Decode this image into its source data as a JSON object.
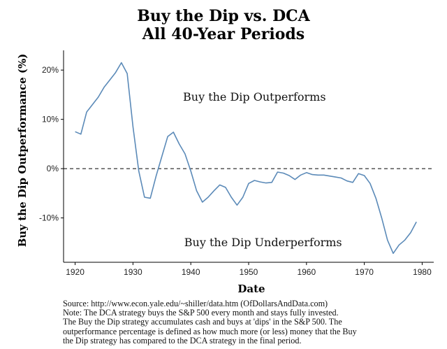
{
  "title_line1": "Buy the Dip vs. DCA",
  "title_line2": "All 40-Year Periods",
  "chart_data": {
    "type": "line",
    "title": "Buy the Dip vs. DCA All 40-Year Periods",
    "xlabel": "Date",
    "ylabel": "Buy the Dip Outperformance (%)",
    "xlim": [
      1918,
      1982
    ],
    "ylim": [
      -19,
      24
    ],
    "x_ticks": [
      1920,
      1930,
      1940,
      1950,
      1960,
      1970,
      1980
    ],
    "x_tick_labels": [
      "1920",
      "1930",
      "1940",
      "1950",
      "1960",
      "1970",
      "1980"
    ],
    "y_ticks": [
      -10,
      0,
      10,
      20
    ],
    "y_tick_labels": [
      "-10%",
      "0%",
      "10%",
      "20%"
    ],
    "reference_line": {
      "y": 0,
      "style": "dashed"
    },
    "annotations": [
      {
        "text": "Buy the Dip Outperforms",
        "x": 1951,
        "y": 14.5
      },
      {
        "text": "Buy the Dip Underperforms",
        "x": 1952.5,
        "y": -15
      }
    ],
    "series": [
      {
        "name": "Buy the Dip Outperformance",
        "color": "#5b8ab8",
        "x": [
          1920,
          1921,
          1922,
          1923,
          1924,
          1925,
          1926,
          1927,
          1928,
          1929,
          1930,
          1931,
          1932,
          1933,
          1934,
          1935,
          1936,
          1937,
          1938,
          1939,
          1940,
          1941,
          1942,
          1943,
          1944,
          1945,
          1946,
          1947,
          1948,
          1949,
          1950,
          1951,
          1952,
          1953,
          1954,
          1955,
          1956,
          1957,
          1958,
          1959,
          1960,
          1961,
          1962,
          1963,
          1964,
          1965,
          1966,
          1967,
          1968,
          1969,
          1970,
          1971,
          1972,
          1973,
          1974,
          1975,
          1976,
          1977,
          1978,
          1979
        ],
        "y": [
          7.5,
          7.0,
          11.5,
          13.0,
          14.5,
          16.5,
          18.0,
          19.5,
          21.5,
          19.3,
          8.5,
          -0.5,
          -5.8,
          -6.0,
          -1.5,
          2.5,
          6.5,
          7.4,
          5.0,
          3.0,
          -0.5,
          -4.5,
          -6.8,
          -5.8,
          -4.5,
          -3.3,
          -3.8,
          -5.8,
          -7.4,
          -5.8,
          -3.0,
          -2.4,
          -2.7,
          -2.9,
          -2.8,
          -0.7,
          -0.9,
          -1.4,
          -2.2,
          -1.3,
          -0.8,
          -1.2,
          -1.3,
          -1.3,
          -1.5,
          -1.7,
          -1.9,
          -2.5,
          -2.8,
          -1.0,
          -1.4,
          -3.0,
          -6.0,
          -10.0,
          -14.5,
          -17.2,
          -15.5,
          -14.5,
          -13.0,
          -10.8
        ]
      }
    ]
  },
  "source_lines": [
    "Source:  http://www.econ.yale.edu/~shiller/data.htm (OfDollarsAndData.com)",
    "Note: The DCA strategy buys the S&P 500 every month and stays fully invested.",
    "The Buy the Dip strategy accumulates cash and buys at 'dips' in the S&P 500. The",
    "outperformance percentage is defined as how much more (or less) money that the Buy",
    "the Dip strategy has compared to the DCA strategy in the final period."
  ]
}
